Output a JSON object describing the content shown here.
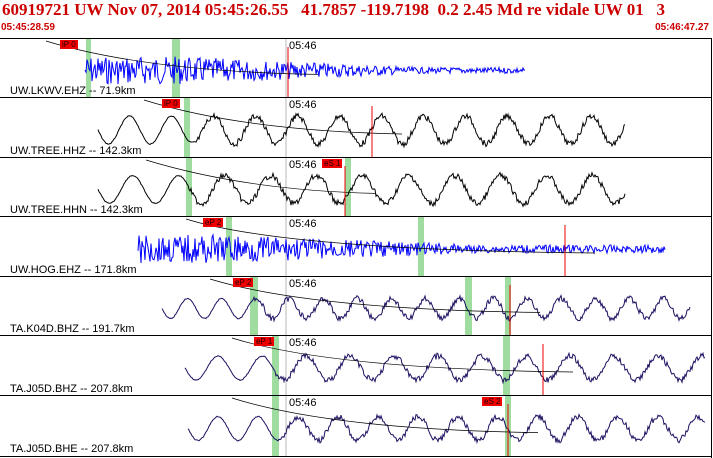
{
  "header": {
    "title": "60919721 UW Nov 07, 2014 05:45:26.55   41.7857 -119.7198  0.2 2.45 Md re vidale UW 01   3",
    "start_time": "05:45:28.59",
    "end_time": "05:46:47.27"
  },
  "colors": {
    "header_text": "#cc0000",
    "pick_box": "#ee0000",
    "trace_blue": "#0000ff",
    "trace_black": "#000000",
    "trace_navy": "#1a1060",
    "window_green": "#9fdc9f"
  },
  "minute_label": "05:46",
  "panels": [
    {
      "label": "UW.LKWV.EHZ -- 71.9km",
      "color": "blue",
      "pick": "iP 0"
    },
    {
      "label": "UW.TREE.HHZ -- 142.3km",
      "color": "black",
      "pick": "iP 0"
    },
    {
      "label": "UW.TREE.HHN -- 142.3km",
      "color": "black",
      "pick": "eS 1"
    },
    {
      "label": "UW.HOG.EHZ -- 171.8km",
      "color": "blue",
      "pick": "eP 2"
    },
    {
      "label": "TA.K04D.BHZ -- 191.7km",
      "color": "navy",
      "pick": "eP 2"
    },
    {
      "label": "TA.J05D.BHZ -- 207.8km",
      "color": "navy",
      "pick": "eP 1"
    },
    {
      "label": "TA.J05D.BHE -- 207.8km",
      "color": "navy",
      "pick": "eS 2"
    }
  ]
}
